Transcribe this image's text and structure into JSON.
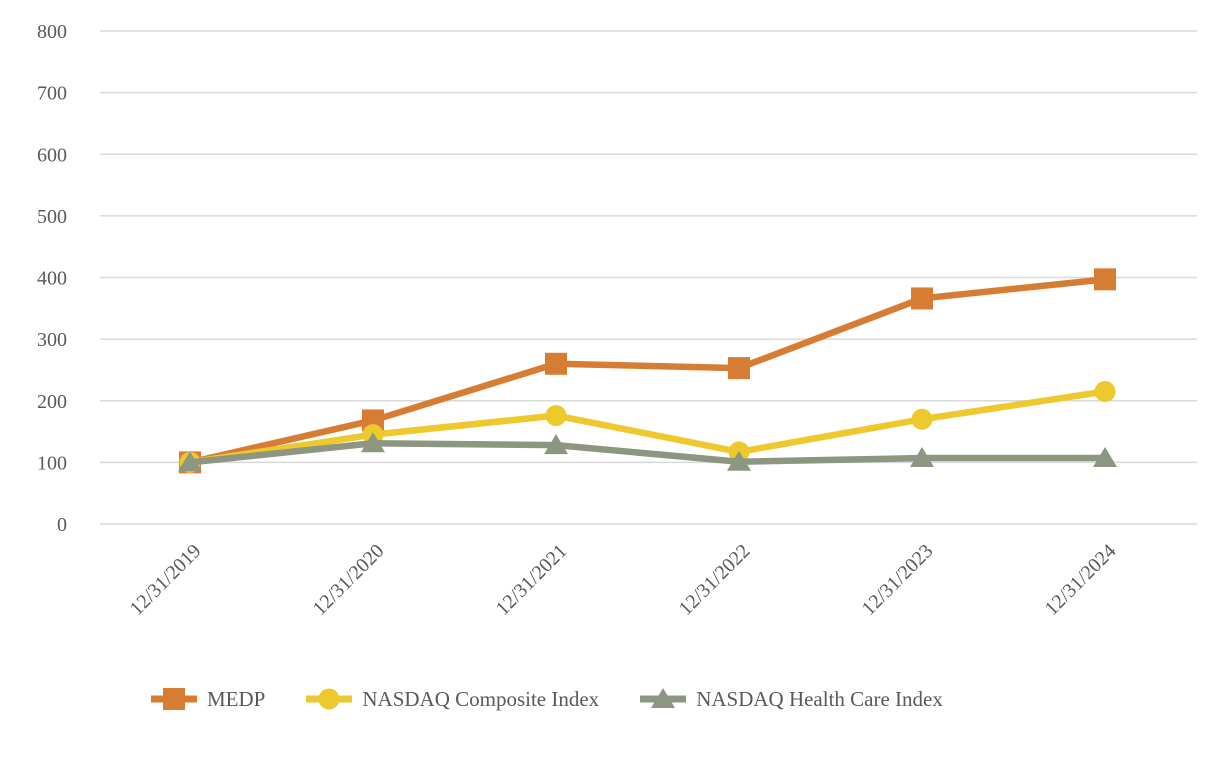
{
  "chart_data": {
    "type": "line",
    "categories": [
      "12/31/2019",
      "12/31/2020",
      "12/31/2021",
      "12/31/2022",
      "12/31/2023",
      "12/31/2024"
    ],
    "series": [
      {
        "name": "MEDP",
        "marker": "square",
        "color": "#D77D33",
        "values": [
          100,
          168,
          260,
          253,
          366,
          397
        ]
      },
      {
        "name": "NASDAQ Composite Index",
        "marker": "circle",
        "color": "#EEC92D",
        "values": [
          100,
          145,
          176,
          117,
          170,
          215
        ]
      },
      {
        "name": "NASDAQ Health Care Index",
        "marker": "triangle",
        "color": "#8C9681",
        "values": [
          100,
          131,
          128,
          101,
          107,
          107
        ]
      }
    ],
    "ylim": [
      0,
      800
    ],
    "ytick_step": 100,
    "yticks": [
      "0",
      "100",
      "200",
      "300",
      "400",
      "500",
      "600",
      "700",
      "800"
    ],
    "grid": true,
    "legend_position": "bottom"
  },
  "styles": {
    "grid_color": "#D9D9D9",
    "tick_color": "#595959",
    "background": "#FFFFFF"
  }
}
